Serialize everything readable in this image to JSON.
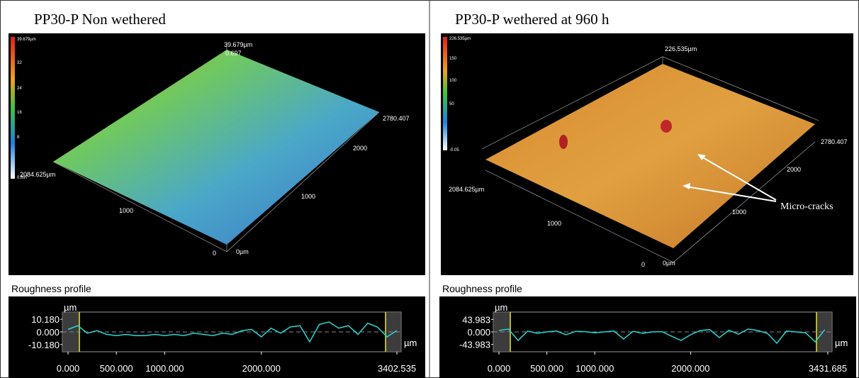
{
  "panels": [
    {
      "title": "PP30-P Non wethered",
      "surface": {
        "colorbar_labels": [
          "39.679µm",
          "32",
          "24",
          "16",
          "8",
          "0.697"
        ],
        "axis_labels": [
          "39.679µm",
          "0.697",
          "2780.407",
          "2000",
          "1000",
          "0",
          "0µm",
          "2084.625µm",
          "1000"
        ]
      },
      "profile": {
        "label": "Roughness profile",
        "y_unit": "µm",
        "x_unit": "µm",
        "color": "#29d6d6",
        "ylim": [
          -16,
          16
        ],
        "xlim": [
          0,
          3402.535
        ],
        "yticks": [
          {
            "value": 10.18,
            "label": "10.180"
          },
          {
            "value": 0,
            "label": "0.000"
          },
          {
            "value": -10.18,
            "label": "-10.180"
          }
        ],
        "xticks": [
          {
            "value": 0,
            "label": "0.000"
          },
          {
            "value": 500,
            "label": "500.000"
          },
          {
            "value": 1000,
            "label": "1000.000"
          },
          {
            "value": 2000,
            "label": "2000.000"
          },
          3402.535
        ],
        "x": [
          0,
          100,
          200,
          300,
          400,
          500,
          600,
          700,
          800,
          900,
          1000,
          1100,
          1200,
          1300,
          1400,
          1500,
          1600,
          1700,
          1800,
          1900,
          2000,
          2100,
          2200,
          2300,
          2400,
          2500,
          2600,
          2700,
          2800,
          2900,
          3000,
          3100,
          3200,
          3300,
          3400
        ],
        "values": [
          2,
          5,
          -1,
          1,
          -2,
          -3,
          -2,
          -3,
          -3,
          -2,
          -3,
          -2,
          -3,
          -1,
          -2,
          -3,
          -1,
          -2,
          1,
          2,
          -4,
          3,
          -1,
          4,
          5,
          -8,
          6,
          8,
          3,
          5,
          -2,
          7,
          4,
          -4,
          1
        ]
      }
    },
    {
      "title": "PP30-P wethered at 960 h",
      "surface": {
        "colorbar_labels": [
          "226.535µm",
          "150",
          "100",
          "50",
          "-0.05"
        ],
        "axis_labels": [
          "226.535µm",
          "2780.407",
          "2000",
          "1000",
          "0",
          "0µm",
          "2084.625µm",
          "1000"
        ],
        "annotation": "Micro-cracks"
      },
      "profile": {
        "label": "Roughness profile",
        "y_unit": "µm",
        "x_unit": "µm",
        "color": "#29d6d6",
        "ylim": [
          -70,
          70
        ],
        "xlim": [
          0,
          3431.685
        ],
        "yticks": [
          43.983,
          {
            "value": 0,
            "label": "0.000"
          },
          -43.983
        ],
        "xticks": [
          {
            "value": 0,
            "label": "0.000"
          },
          {
            "value": 500,
            "label": "500.000"
          },
          {
            "value": 1000,
            "label": "1000.000"
          },
          {
            "value": 2000,
            "label": "2000.000"
          },
          3431.685
        ],
        "x": [
          0,
          100,
          200,
          300,
          400,
          500,
          600,
          700,
          800,
          900,
          1000,
          1100,
          1200,
          1300,
          1400,
          1500,
          1600,
          1700,
          1800,
          1900,
          2000,
          2100,
          2200,
          2300,
          2400,
          2500,
          2600,
          2700,
          2800,
          2900,
          3000,
          3100,
          3200,
          3300,
          3400
        ],
        "values": [
          5,
          10,
          -30,
          3,
          -5,
          0,
          3,
          -10,
          2,
          1,
          -3,
          0,
          3,
          -25,
          2,
          -5,
          0,
          1,
          -15,
          -30,
          -10,
          5,
          8,
          -20,
          6,
          -8,
          10,
          5,
          -5,
          -40,
          3,
          0,
          -3,
          -35,
          8
        ]
      }
    }
  ]
}
